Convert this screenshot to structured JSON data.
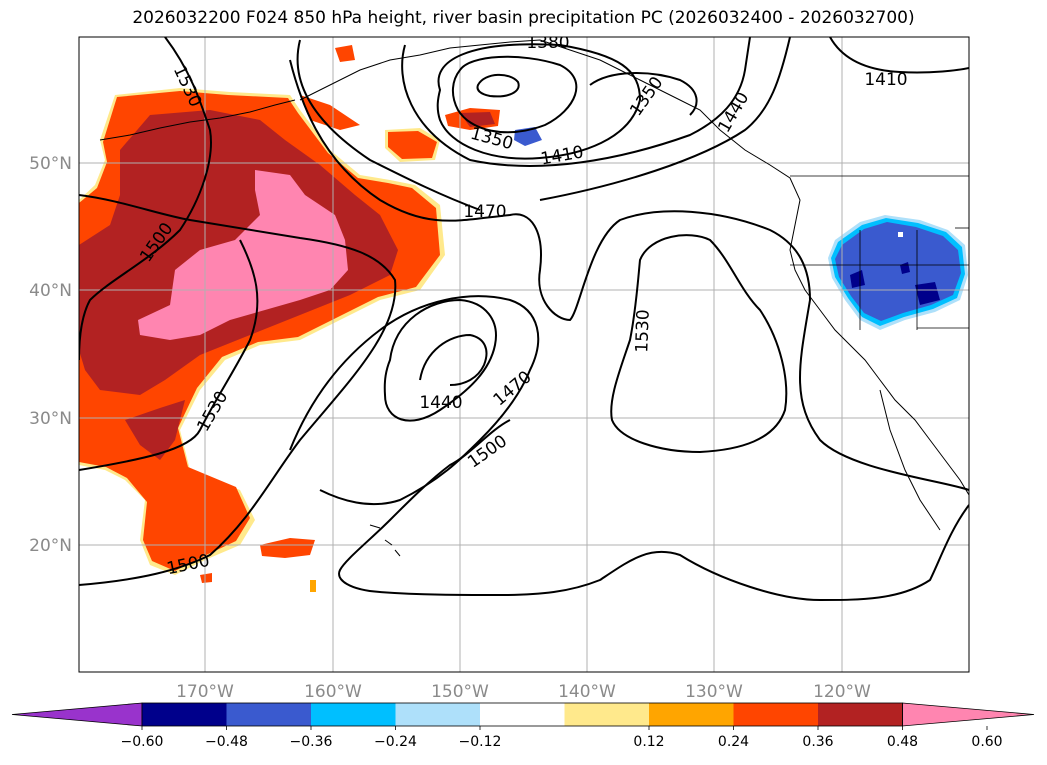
{
  "title": "2026032200 F024 850 hPa height, river basin precipitation PC (2026032400 - 2026032700)",
  "map": {
    "lat_labels": [
      "50°N",
      "40°N",
      "30°N",
      "20°N"
    ],
    "lon_labels": [
      "170°W",
      "160°W",
      "150°W",
      "140°W",
      "130°W",
      "120°W"
    ],
    "contour_labels": [
      "1530",
      "1380",
      "1410",
      "1350",
      "1350",
      "1410",
      "1440",
      "1470",
      "1500",
      "1440",
      "1470",
      "1530",
      "1500",
      "1530",
      "1500"
    ],
    "line_color": "#000000",
    "grid_color": "#b0b0b0"
  },
  "colorbar": {
    "ticks": [
      "−0.60",
      "−0.48",
      "−0.36",
      "−0.24",
      "−0.12",
      "0.12",
      "0.24",
      "0.36",
      "0.48",
      "0.60"
    ],
    "colors": [
      "#9933cc",
      "#00008b",
      "#3a5acf",
      "#00bfff",
      "#aee0fa",
      "#ffffff",
      "#ffe98c",
      "#ffa500",
      "#ff4500",
      "#b22222",
      "#ff85b0"
    ]
  }
}
